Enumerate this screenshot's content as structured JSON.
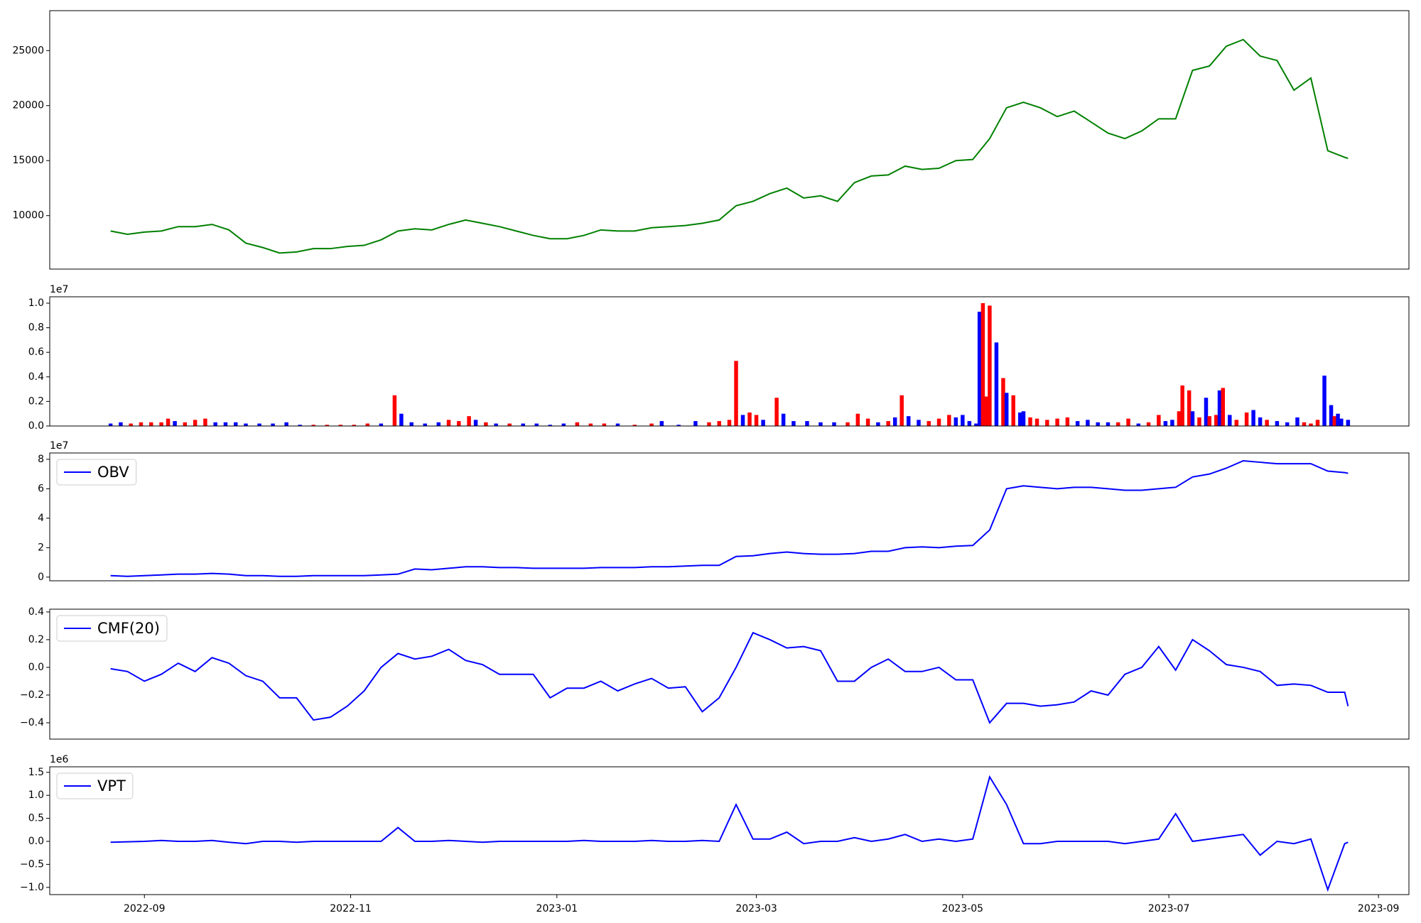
{
  "chart_data": [
    {
      "type": "line",
      "color": "#008000",
      "x": [
        19226,
        19231,
        19236,
        19241,
        19246,
        19251,
        19256,
        19261,
        19266,
        19271,
        19276,
        19281,
        19286,
        19291,
        19296,
        19301,
        19306,
        19311,
        19316,
        19321,
        19326,
        19331,
        19336,
        19341,
        19346,
        19351,
        19356,
        19361,
        19366,
        19371,
        19376,
        19381,
        19386,
        19391,
        19396,
        19401,
        19406,
        19411,
        19416,
        19421,
        19426,
        19431,
        19436,
        19441,
        19446,
        19451,
        19456,
        19461,
        19466,
        19471,
        19476,
        19481,
        19486,
        19491,
        19496,
        19501,
        19506,
        19511,
        19516,
        19521,
        19526,
        19531,
        19536,
        19541,
        19546,
        19551,
        19556,
        19561,
        19566,
        19571,
        19576,
        19581,
        19586,
        19591,
        19592
      ],
      "values": [
        8600,
        8300,
        8500,
        8600,
        9000,
        9000,
        9200,
        8700,
        7500,
        7100,
        6600,
        6700,
        7000,
        7000,
        7200,
        7300,
        7800,
        8600,
        8800,
        8700,
        9200,
        9600,
        9300,
        9000,
        8600,
        8200,
        7900,
        7900,
        8200,
        8700,
        8600,
        8600,
        8900,
        9000,
        9100,
        9300,
        9600,
        10900,
        11300,
        12000,
        12500,
        11600,
        11800,
        11300,
        13000,
        13600,
        13700,
        14500,
        14200,
        14300,
        15000,
        15100,
        17000,
        19800,
        20300,
        19800,
        19000,
        19500,
        18500,
        17500,
        17000,
        17700,
        18800,
        18800,
        23200,
        23600,
        25400,
        26000,
        24500,
        24100,
        21400,
        22500,
        15900,
        15300,
        15200
      ],
      "xlim": [
        19208,
        19610
      ],
      "ylim": [
        5140,
        28630
      ],
      "yticks": [
        10000,
        15000,
        20000,
        25000
      ]
    },
    {
      "type": "bar",
      "offset_label": "1e7",
      "x": [
        19226,
        19229,
        19232,
        19235,
        19238,
        19241,
        19243,
        19245,
        19248,
        19251,
        19254,
        19257,
        19260,
        19263,
        19266,
        19270,
        19274,
        19278,
        19282,
        19286,
        19290,
        19294,
        19298,
        19302,
        19306,
        19310,
        19312,
        19315,
        19319,
        19323,
        19326,
        19329,
        19332,
        19334,
        19337,
        19340,
        19344,
        19348,
        19352,
        19356,
        19360,
        19364,
        19368,
        19372,
        19376,
        19381,
        19386,
        19389,
        19394,
        19399,
        19403,
        19406,
        19409,
        19411,
        19413,
        19415,
        19417,
        19419,
        19423,
        19425,
        19428,
        19432,
        19436,
        19440,
        19444,
        19447,
        19450,
        19453,
        19456,
        19458,
        19460,
        19462,
        19465,
        19468,
        19471,
        19474,
        19476,
        19478,
        19480,
        19482,
        19483,
        19484,
        19485,
        19486,
        19488,
        19490,
        19491,
        19493,
        19495,
        19496,
        19498,
        19500,
        19503,
        19506,
        19509,
        19512,
        19515,
        19518,
        19521,
        19524,
        19527,
        19530,
        19533,
        19536,
        19538,
        19540,
        19542,
        19543,
        19545,
        19546,
        19548,
        19550,
        19551,
        19553,
        19554,
        19555,
        19557,
        19559,
        19562,
        19564,
        19566,
        19568,
        19571,
        19574,
        19577,
        19579,
        19581,
        19583,
        19585,
        19587,
        19588,
        19589,
        19590,
        19592
      ],
      "values": [
        0.02,
        0.03,
        0.02,
        0.03,
        0.03,
        0.03,
        0.06,
        0.04,
        0.03,
        0.05,
        0.06,
        0.03,
        0.03,
        0.03,
        0.02,
        0.02,
        0.02,
        0.03,
        0.01,
        0.01,
        0.01,
        0.01,
        0.01,
        0.02,
        0.02,
        0.25,
        0.1,
        0.03,
        0.02,
        0.03,
        0.05,
        0.04,
        0.08,
        0.05,
        0.03,
        0.02,
        0.02,
        0.02,
        0.02,
        0.01,
        0.02,
        0.03,
        0.02,
        0.02,
        0.02,
        0.01,
        0.02,
        0.04,
        0.01,
        0.04,
        0.03,
        0.04,
        0.05,
        0.53,
        0.09,
        0.11,
        0.09,
        0.05,
        0.23,
        0.1,
        0.04,
        0.04,
        0.03,
        0.03,
        0.03,
        0.1,
        0.06,
        0.03,
        0.04,
        0.07,
        0.25,
        0.08,
        0.05,
        0.04,
        0.06,
        0.09,
        0.07,
        0.09,
        0.04,
        0.02,
        0.93,
        1.0,
        0.24,
        0.98,
        0.68,
        0.39,
        0.27,
        0.25,
        0.11,
        0.12,
        0.07,
        0.06,
        0.05,
        0.06,
        0.07,
        0.04,
        0.05,
        0.03,
        0.03,
        0.03,
        0.06,
        0.02,
        0.03,
        0.09,
        0.04,
        0.05,
        0.12,
        0.33,
        0.29,
        0.12,
        0.07,
        0.23,
        0.08,
        0.09,
        0.29,
        0.31,
        0.09,
        0.05,
        0.11,
        0.13,
        0.07,
        0.05,
        0.04,
        0.03,
        0.07,
        0.03,
        0.02,
        0.05,
        0.41,
        0.17,
        0.08,
        0.1,
        0.06,
        0.05
      ],
      "colors": [
        "blue",
        "blue",
        "red",
        "red",
        "red",
        "red",
        "red",
        "blue",
        "red",
        "red",
        "red",
        "blue",
        "blue",
        "blue",
        "blue",
        "blue",
        "blue",
        "blue",
        "blue",
        "red",
        "red",
        "red",
        "red",
        "red",
        "blue",
        "red",
        "blue",
        "blue",
        "blue",
        "blue",
        "red",
        "red",
        "red",
        "blue",
        "red",
        "blue",
        "red",
        "blue",
        "blue",
        "blue",
        "blue",
        "red",
        "red",
        "red",
        "blue",
        "red",
        "red",
        "blue",
        "blue",
        "blue",
        "red",
        "red",
        "red",
        "red",
        "blue",
        "red",
        "red",
        "blue",
        "red",
        "blue",
        "blue",
        "blue",
        "blue",
        "blue",
        "red",
        "red",
        "red",
        "blue",
        "red",
        "blue",
        "red",
        "blue",
        "blue",
        "red",
        "red",
        "red",
        "blue",
        "blue",
        "blue",
        "blue",
        "blue",
        "red",
        "red",
        "red",
        "blue",
        "red",
        "blue",
        "red",
        "blue",
        "blue",
        "red",
        "red",
        "red",
        "red",
        "red",
        "blue",
        "blue",
        "blue",
        "blue",
        "red",
        "red",
        "blue",
        "red",
        "red",
        "blue",
        "blue",
        "red",
        "red",
        "red",
        "blue",
        "red",
        "blue",
        "red",
        "red",
        "blue",
        "red",
        "blue",
        "red",
        "red",
        "blue",
        "blue",
        "red",
        "blue",
        "blue",
        "blue",
        "red",
        "red",
        "red",
        "blue",
        "blue",
        "red",
        "blue",
        "blue",
        "blue"
      ],
      "xlim": [
        19208,
        19610
      ],
      "ylim": [
        0,
        1.052
      ],
      "yticks": [
        {
          "value": 0,
          "label": "0.0"
        },
        0.2,
        0.4,
        0.6,
        0.8,
        {
          "value": 1,
          "label": "1.0"
        }
      ]
    },
    {
      "type": "line",
      "offset_label": "1e7",
      "legend": "upper left",
      "x": [
        19226,
        19231,
        19236,
        19241,
        19246,
        19251,
        19256,
        19261,
        19266,
        19271,
        19276,
        19281,
        19286,
        19291,
        19296,
        19301,
        19306,
        19311,
        19316,
        19321,
        19326,
        19331,
        19336,
        19341,
        19346,
        19351,
        19356,
        19361,
        19366,
        19371,
        19376,
        19381,
        19386,
        19391,
        19396,
        19401,
        19406,
        19411,
        19416,
        19421,
        19426,
        19431,
        19436,
        19441,
        19446,
        19451,
        19456,
        19461,
        19466,
        19471,
        19476,
        19481,
        19486,
        19491,
        19496,
        19501,
        19506,
        19511,
        19516,
        19521,
        19526,
        19531,
        19536,
        19541,
        19546,
        19551,
        19556,
        19561,
        19566,
        19571,
        19576,
        19581,
        19586,
        19591,
        19592
      ],
      "series": [
        {
          "name": "OBV",
          "color": "blue",
          "values": [
            0.1,
            0.05,
            0.1,
            0.15,
            0.2,
            0.2,
            0.25,
            0.2,
            0.1,
            0.1,
            0.05,
            0.05,
            0.1,
            0.1,
            0.1,
            0.1,
            0.15,
            0.2,
            0.55,
            0.5,
            0.6,
            0.7,
            0.7,
            0.65,
            0.65,
            0.6,
            0.6,
            0.6,
            0.6,
            0.65,
            0.65,
            0.65,
            0.7,
            0.7,
            0.75,
            0.8,
            0.8,
            1.4,
            1.45,
            1.6,
            1.7,
            1.6,
            1.55,
            1.55,
            1.6,
            1.75,
            1.75,
            2.0,
            2.05,
            2.0,
            2.1,
            2.15,
            3.2,
            6.0,
            6.2,
            6.1,
            6.0,
            6.1,
            6.1,
            6.0,
            5.9,
            5.9,
            6.0,
            6.1,
            6.8,
            7.0,
            7.4,
            7.9,
            7.8,
            7.7,
            7.7,
            7.7,
            7.2,
            7.1,
            7.05
          ]
        }
      ],
      "xlim": [
        19208,
        19610
      ],
      "ylim": [
        -0.25,
        8.43
      ],
      "yticks": [
        0,
        2,
        4,
        6,
        8
      ]
    },
    {
      "type": "line",
      "legend": "upper left",
      "x": [
        19226,
        19231,
        19236,
        19241,
        19246,
        19251,
        19256,
        19261,
        19266,
        19271,
        19276,
        19281,
        19286,
        19291,
        19296,
        19301,
        19306,
        19311,
        19316,
        19321,
        19326,
        19331,
        19336,
        19341,
        19346,
        19351,
        19356,
        19361,
        19366,
        19371,
        19376,
        19381,
        19386,
        19391,
        19396,
        19401,
        19406,
        19411,
        19416,
        19421,
        19426,
        19431,
        19436,
        19441,
        19446,
        19451,
        19456,
        19461,
        19466,
        19471,
        19476,
        19481,
        19486,
        19491,
        19496,
        19501,
        19506,
        19511,
        19516,
        19521,
        19526,
        19531,
        19536,
        19541,
        19546,
        19551,
        19556,
        19561,
        19566,
        19571,
        19576,
        19581,
        19586,
        19591,
        19592
      ],
      "series": [
        {
          "name": "CMF(20)",
          "color": "blue",
          "values": [
            -0.01,
            -0.03,
            -0.1,
            -0.05,
            0.03,
            -0.03,
            0.07,
            0.03,
            -0.06,
            -0.1,
            -0.22,
            -0.22,
            -0.38,
            -0.36,
            -0.28,
            -0.17,
            0.0,
            0.1,
            0.06,
            0.08,
            0.13,
            0.05,
            0.02,
            -0.05,
            -0.05,
            -0.05,
            -0.22,
            -0.15,
            -0.15,
            -0.1,
            -0.17,
            -0.12,
            -0.08,
            -0.15,
            -0.14,
            -0.32,
            -0.22,
            0.0,
            0.25,
            0.2,
            0.14,
            0.15,
            0.12,
            -0.1,
            -0.1,
            0.0,
            0.06,
            -0.03,
            -0.03,
            0.0,
            -0.09,
            -0.09,
            -0.4,
            -0.26,
            -0.26,
            -0.28,
            -0.27,
            -0.25,
            -0.17,
            -0.2,
            -0.05,
            0.0,
            0.15,
            -0.02,
            0.2,
            0.12,
            0.02,
            0.0,
            -0.03,
            -0.13,
            -0.12,
            -0.13,
            -0.18,
            -0.18,
            -0.28
          ]
        }
      ],
      "xlim": [
        19208,
        19610
      ],
      "ylim": [
        -0.518,
        0.42
      ],
      "yticks": [
        {
          "value": -0.4,
          "label": "−0.4"
        },
        {
          "value": -0.2,
          "label": "−0.2"
        },
        {
          "value": 0,
          "label": "0.0"
        },
        0.2,
        0.4
      ]
    },
    {
      "type": "line",
      "offset_label": "1e6",
      "legend": "upper left",
      "x": [
        19226,
        19231,
        19236,
        19241,
        19246,
        19251,
        19256,
        19261,
        19266,
        19271,
        19276,
        19281,
        19286,
        19291,
        19296,
        19301,
        19306,
        19311,
        19316,
        19321,
        19326,
        19331,
        19336,
        19341,
        19346,
        19351,
        19356,
        19361,
        19366,
        19371,
        19376,
        19381,
        19386,
        19391,
        19396,
        19401,
        19406,
        19411,
        19416,
        19421,
        19426,
        19431,
        19436,
        19441,
        19446,
        19451,
        19456,
        19461,
        19466,
        19471,
        19476,
        19481,
        19486,
        19491,
        19496,
        19501,
        19506,
        19511,
        19516,
        19521,
        19526,
        19531,
        19536,
        19541,
        19546,
        19551,
        19556,
        19561,
        19566,
        19571,
        19576,
        19581,
        19586,
        19591,
        19592
      ],
      "series": [
        {
          "name": "VPT",
          "color": "blue",
          "values": [
            -0.02,
            -0.01,
            0.0,
            0.02,
            0.0,
            0.0,
            0.02,
            -0.02,
            -0.05,
            0.0,
            0.0,
            -0.02,
            0.0,
            0.0,
            0.0,
            0.0,
            0.0,
            0.3,
            0.0,
            0.0,
            0.02,
            0.0,
            -0.02,
            0.0,
            0.0,
            0.0,
            0.0,
            0.0,
            0.02,
            0.0,
            0.0,
            0.0,
            0.02,
            0.0,
            0.0,
            0.02,
            0.0,
            0.8,
            0.05,
            0.05,
            0.2,
            -0.05,
            0.0,
            0.0,
            0.08,
            0.0,
            0.05,
            0.15,
            0.0,
            0.05,
            0.0,
            0.05,
            1.4,
            0.8,
            -0.05,
            -0.05,
            0.0,
            0.0,
            0.0,
            0.0,
            -0.05,
            0.0,
            0.05,
            0.6,
            0.0,
            0.05,
            0.1,
            0.15,
            -0.3,
            0.0,
            -0.05,
            0.05,
            -1.05,
            -0.05,
            -0.02
          ]
        }
      ],
      "xlim": [
        19208,
        19610
      ],
      "ylim": [
        -1.157,
        1.62
      ],
      "yticks": [
        {
          "value": -1,
          "label": "−1.0"
        },
        {
          "value": -0.5,
          "label": "−0.5"
        },
        {
          "value": 0,
          "label": "0.0"
        },
        0.5,
        {
          "value": 1,
          "label": "1.0"
        },
        1.5
      ],
      "xticks": [
        {
          "value": 19236,
          "label": "2022-09"
        },
        {
          "value": 19297,
          "label": "2022-11"
        },
        {
          "value": 19358,
          "label": "2023-01"
        },
        {
          "value": 19417,
          "label": "2023-03"
        },
        {
          "value": 19478,
          "label": "2023-05"
        },
        {
          "value": 19539,
          "label": "2023-07"
        },
        {
          "value": 19601,
          "label": "2023-09"
        }
      ]
    }
  ]
}
